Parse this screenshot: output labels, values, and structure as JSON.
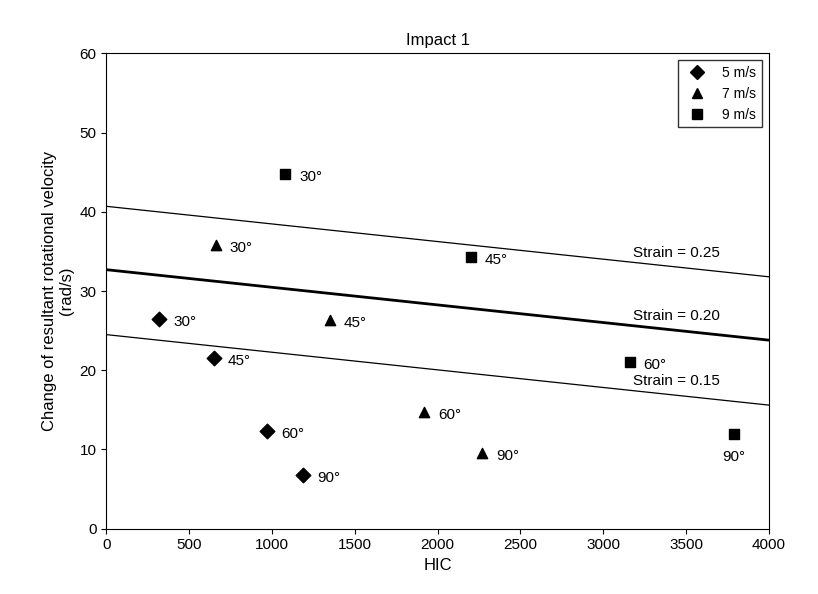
{
  "chart_data": {
    "type": "scatter",
    "title": "Impact 1",
    "x_label": "HIC",
    "y_label": "Change of resultant rotational velocity\n(rad/s)",
    "xlim": [
      0,
      4000
    ],
    "xticks": [
      0,
      500,
      1000,
      1500,
      2000,
      2500,
      3000,
      3500,
      4000
    ],
    "ylim": [
      0,
      60
    ],
    "yticks": [
      0,
      10,
      20,
      30,
      40,
      50,
      60
    ],
    "grid": false,
    "legend": "upper right",
    "series": [
      {
        "name": "5 m/s",
        "color": "#000000",
        "marker": "diamond",
        "x": [
          320,
          650,
          970,
          1190
        ],
        "values": [
          26.5,
          21.5,
          12.3,
          6.8
        ],
        "point_labels": [
          "30°",
          "45°",
          "60°",
          "90°"
        ]
      },
      {
        "name": "7 m/s",
        "color": "#000000",
        "marker": "triangle",
        "x": [
          660,
          1350,
          1920,
          2270
        ],
        "values": [
          35.8,
          26.3,
          14.7,
          9.5
        ],
        "point_labels": [
          "30°",
          "45°",
          "60°",
          "90°"
        ]
      },
      {
        "name": "9 m/s",
        "color": "#000000",
        "marker": "square",
        "x": [
          1080,
          2200,
          3160,
          3790
        ],
        "values": [
          44.8,
          34.3,
          21.0,
          12.0
        ],
        "point_labels": [
          "30°",
          "45°",
          "60°",
          "90°"
        ]
      }
    ],
    "lines": [
      {
        "label": "Strain = 0.25",
        "x": [
          0,
          4000
        ],
        "values": [
          40.7,
          31.8
        ],
        "color": "#000000",
        "line_style": "thin"
      },
      {
        "label": "Strain = 0.20",
        "x": [
          0,
          4000
        ],
        "values": [
          32.7,
          23.8
        ],
        "color": "#000000",
        "line_style": "thick"
      },
      {
        "label": "Strain = 0.15",
        "x": [
          0,
          4000
        ],
        "values": [
          24.5,
          15.6
        ],
        "color": "#000000",
        "line_style": "thin"
      }
    ]
  }
}
